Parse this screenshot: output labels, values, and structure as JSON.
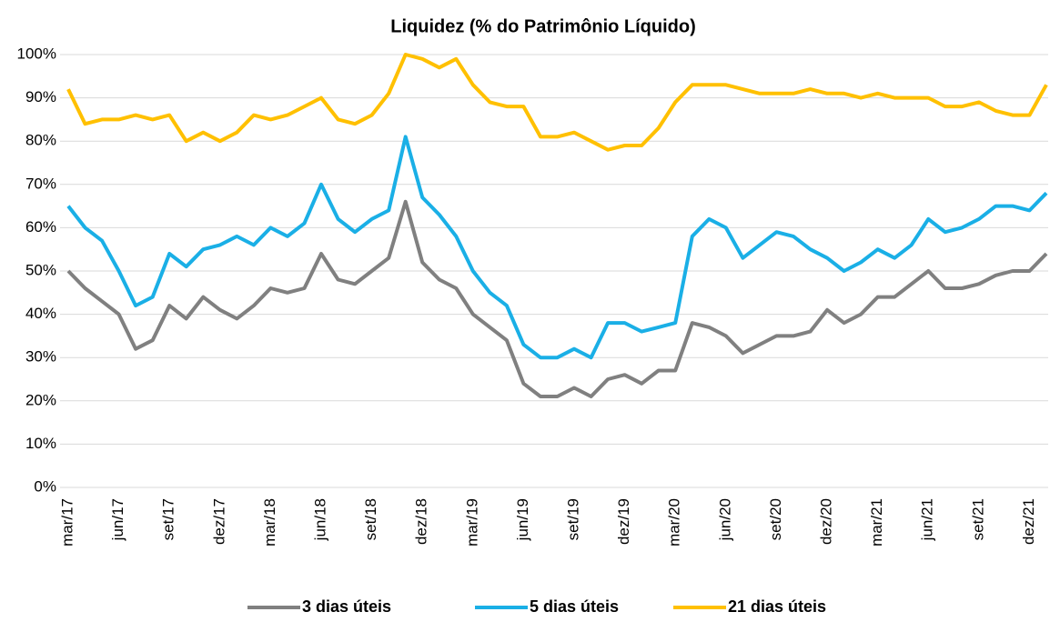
{
  "chart_data": {
    "type": "line",
    "title": "Liquidez (% do Patrimônio Líquido)",
    "categories": [
      "mar/17",
      null,
      null,
      "jun/17",
      null,
      null,
      "set/17",
      null,
      null,
      "dez/17",
      null,
      null,
      "mar/18",
      null,
      null,
      "jun/18",
      null,
      null,
      "set/18",
      null,
      null,
      "dez/18",
      null,
      null,
      "mar/19",
      null,
      null,
      "jun/19",
      null,
      null,
      "set/19",
      null,
      null,
      "dez/19",
      null,
      null,
      "mar/20",
      null,
      null,
      "jun/20",
      null,
      null,
      "set/20",
      null,
      null,
      "dez/20",
      null,
      null,
      "mar/21",
      null,
      null,
      "jun/21",
      null,
      null,
      "set/21",
      null,
      null,
      "dez/21",
      null
    ],
    "series": [
      {
        "name": "3 dias úteis",
        "color": "#808080",
        "values": [
          50,
          46,
          43,
          40,
          32,
          34,
          42,
          39,
          44,
          41,
          39,
          42,
          46,
          45,
          46,
          54,
          48,
          47,
          50,
          53,
          66,
          52,
          48,
          46,
          40,
          37,
          34,
          24,
          21,
          21,
          23,
          21,
          25,
          26,
          24,
          27,
          27,
          38,
          37,
          35,
          31,
          33,
          35,
          35,
          36,
          41,
          38,
          40,
          44,
          44,
          47,
          50,
          46,
          46,
          47,
          49,
          50,
          50,
          54
        ]
      },
      {
        "name": "5 dias úteis",
        "color": "#1aafe6",
        "values": [
          65,
          60,
          57,
          50,
          42,
          44,
          54,
          51,
          55,
          56,
          58,
          56,
          60,
          58,
          61,
          70,
          62,
          59,
          62,
          64,
          81,
          67,
          63,
          58,
          50,
          45,
          42,
          33,
          30,
          30,
          32,
          30,
          38,
          38,
          36,
          37,
          38,
          58,
          62,
          60,
          53,
          56,
          59,
          58,
          55,
          53,
          50,
          52,
          55,
          53,
          56,
          62,
          59,
          60,
          62,
          65,
          65,
          64,
          68
        ]
      },
      {
        "name": "21 dias úteis",
        "color": "#ffc000",
        "values": [
          92,
          84,
          85,
          85,
          86,
          85,
          86,
          80,
          82,
          80,
          82,
          86,
          85,
          86,
          88,
          90,
          85,
          84,
          86,
          91,
          100,
          99,
          97,
          99,
          93,
          89,
          88,
          88,
          81,
          81,
          82,
          80,
          78,
          79,
          79,
          83,
          89,
          93,
          93,
          93,
          92,
          91,
          91,
          91,
          92,
          91,
          91,
          90,
          91,
          90,
          90,
          90,
          88,
          88,
          89,
          87,
          86,
          86,
          93
        ]
      }
    ],
    "ylim": [
      0,
      100
    ],
    "yticks": [
      {
        "value": 0,
        "label": "0%"
      },
      {
        "value": 10,
        "label": "10%"
      },
      {
        "value": 20,
        "label": "20%"
      },
      {
        "value": 30,
        "label": "30%"
      },
      {
        "value": 40,
        "label": "40%"
      },
      {
        "value": 50,
        "label": "50%"
      },
      {
        "value": 60,
        "label": "60%"
      },
      {
        "value": 70,
        "label": "70%"
      },
      {
        "value": 80,
        "label": "80%"
      },
      {
        "value": 90,
        "label": "90%"
      },
      {
        "value": {
          "value": 100,
          "label": "100%"
        }
      }
    ],
    "grid": true,
    "legend": "bottom"
  }
}
